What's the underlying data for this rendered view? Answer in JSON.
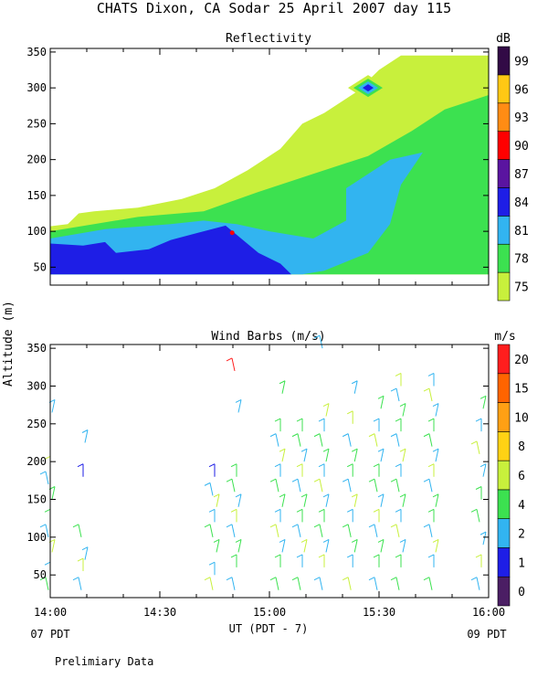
{
  "header": {
    "title": "CHATS Dixon, CA  Sodar  25 April 2007  day 115"
  },
  "shared": {
    "ylabel": "Altitude (m)",
    "xlabel": "UT  (PDT - 7)",
    "x_ticks": [
      "14:00",
      "14:30",
      "15:00",
      "15:30",
      "16:00"
    ],
    "left_footer": "07 PDT",
    "right_footer": "09 PDT",
    "note": "Prelimiary Data"
  },
  "chart_data": [
    {
      "type": "heatmap",
      "title": "Reflectivity",
      "units_label": "dB",
      "x_range": [
        "14:00",
        "16:00"
      ],
      "ylim": [
        25,
        355
      ],
      "y_ticks": [
        50,
        100,
        150,
        200,
        250,
        300,
        350
      ],
      "colorbar": {
        "levels": [
          75,
          78,
          81,
          84,
          87,
          90,
          93,
          96,
          99
        ],
        "colors": [
          "#c8f03c",
          "#3ce150",
          "#32b4f0",
          "#1e1ee6",
          "#5a14a0",
          "#ff0000",
          "#ff8c14",
          "#ffc814",
          "#320a46"
        ]
      },
      "regions": [
        {
          "level": 75,
          "polygon": [
            [
              14.0,
              40
            ],
            [
              14.0,
              107
            ],
            [
              14.08,
              110
            ],
            [
              14.13,
              125
            ],
            [
              14.2,
              128
            ],
            [
              14.4,
              133
            ],
            [
              14.6,
              145
            ],
            [
              14.75,
              160
            ],
            [
              14.9,
              185
            ],
            [
              15.05,
              215
            ],
            [
              15.15,
              250
            ],
            [
              15.25,
              265
            ],
            [
              15.4,
              295
            ],
            [
              15.5,
              325
            ],
            [
              15.6,
              345
            ],
            [
              16.0,
              345
            ],
            [
              16.0,
              40
            ]
          ]
        },
        {
          "level": 78,
          "polygon": [
            [
              14.0,
              40
            ],
            [
              14.0,
              100
            ],
            [
              14.2,
              110
            ],
            [
              14.4,
              120
            ],
            [
              14.7,
              128
            ],
            [
              14.95,
              155
            ],
            [
              15.2,
              180
            ],
            [
              15.45,
              205
            ],
            [
              15.65,
              240
            ],
            [
              15.8,
              270
            ],
            [
              16.0,
              290
            ],
            [
              16.0,
              40
            ]
          ]
        },
        {
          "level": 81,
          "polygon": [
            [
              14.0,
              40
            ],
            [
              14.0,
              90
            ],
            [
              14.25,
              103
            ],
            [
              14.55,
              110
            ],
            [
              14.7,
              115
            ],
            [
              14.85,
              110
            ],
            [
              15.0,
              100
            ],
            [
              15.1,
              95
            ],
            [
              15.2,
              90
            ],
            [
              15.35,
              115
            ],
            [
              15.35,
              160
            ],
            [
              15.55,
              200
            ],
            [
              15.7,
              210
            ],
            [
              15.6,
              165
            ],
            [
              15.55,
              110
            ],
            [
              15.45,
              70
            ],
            [
              15.25,
              45
            ],
            [
              15.15,
              40
            ]
          ]
        },
        {
          "level": 84,
          "polygon": [
            [
              14.0,
              40
            ],
            [
              14.0,
              83
            ],
            [
              14.15,
              80
            ],
            [
              14.25,
              85
            ],
            [
              14.3,
              70
            ],
            [
              14.45,
              75
            ],
            [
              14.55,
              88
            ],
            [
              14.7,
              100
            ],
            [
              14.8,
              108
            ],
            [
              14.95,
              70
            ],
            [
              15.05,
              55
            ],
            [
              15.1,
              40
            ]
          ]
        }
      ],
      "blips": [
        {
          "level": 84,
          "x": 15.45,
          "y": 300
        },
        {
          "level": 90,
          "x": 14.83,
          "y": 98
        }
      ]
    },
    {
      "type": "scatter",
      "title": "Wind Barbs (m/s)",
      "units_label": "m/s",
      "x_range": [
        "14:00",
        "16:00"
      ],
      "ylim": [
        20,
        355
      ],
      "y_ticks": [
        50,
        100,
        150,
        200,
        250,
        300,
        350
      ],
      "colorbar": {
        "levels": [
          0,
          1,
          2,
          4,
          6,
          8,
          10,
          15,
          20
        ],
        "colors": [
          "#4b1e64",
          "#1e1ee6",
          "#32b4f0",
          "#3ce150",
          "#c8f03c",
          "#ffd214",
          "#ffa014",
          "#ff6400",
          "#ff1e1e"
        ]
      },
      "barb_columns": [
        {
          "x": 14.0,
          "altitudes": [
            30,
            50,
            80,
            100,
            120,
            150,
            170,
            190,
            265
          ]
        },
        {
          "x": 14.15,
          "altitudes": [
            30,
            55,
            70,
            100,
            180,
            225
          ]
        },
        {
          "x": 14.75,
          "altitudes": [
            30,
            50,
            80,
            100,
            120,
            140,
            155,
            180
          ]
        },
        {
          "x": 14.85,
          "altitudes": [
            30,
            60,
            80,
            100,
            120,
            140,
            160,
            180,
            265,
            320
          ]
        },
        {
          "x": 15.05,
          "altitudes": [
            30,
            60,
            80,
            100,
            120,
            140,
            160,
            180,
            200,
            220,
            240,
            290
          ]
        },
        {
          "x": 15.15,
          "altitudes": [
            30,
            60,
            80,
            100,
            120,
            140,
            160,
            180,
            200,
            220,
            240
          ]
        },
        {
          "x": 15.25,
          "altitudes": [
            30,
            60,
            80,
            100,
            120,
            140,
            160,
            180,
            200,
            220,
            240,
            260,
            350
          ]
        },
        {
          "x": 15.38,
          "altitudes": [
            30,
            60,
            80,
            100,
            120,
            140,
            160,
            180,
            200,
            220,
            250,
            290
          ]
        },
        {
          "x": 15.5,
          "altitudes": [
            30,
            60,
            80,
            100,
            120,
            140,
            160,
            180,
            200,
            220,
            240,
            270
          ]
        },
        {
          "x": 15.6,
          "altitudes": [
            30,
            60,
            80,
            100,
            120,
            140,
            160,
            180,
            200,
            220,
            240,
            260,
            280,
            300
          ]
        },
        {
          "x": 15.75,
          "altitudes": [
            30,
            60,
            80,
            100,
            120,
            140,
            160,
            180,
            200,
            220,
            240,
            260,
            280,
            300
          ]
        },
        {
          "x": 16.0,
          "altitudes": [
            30,
            60,
            90,
            120,
            150,
            180,
            210,
            240,
            270
          ]
        }
      ]
    }
  ]
}
